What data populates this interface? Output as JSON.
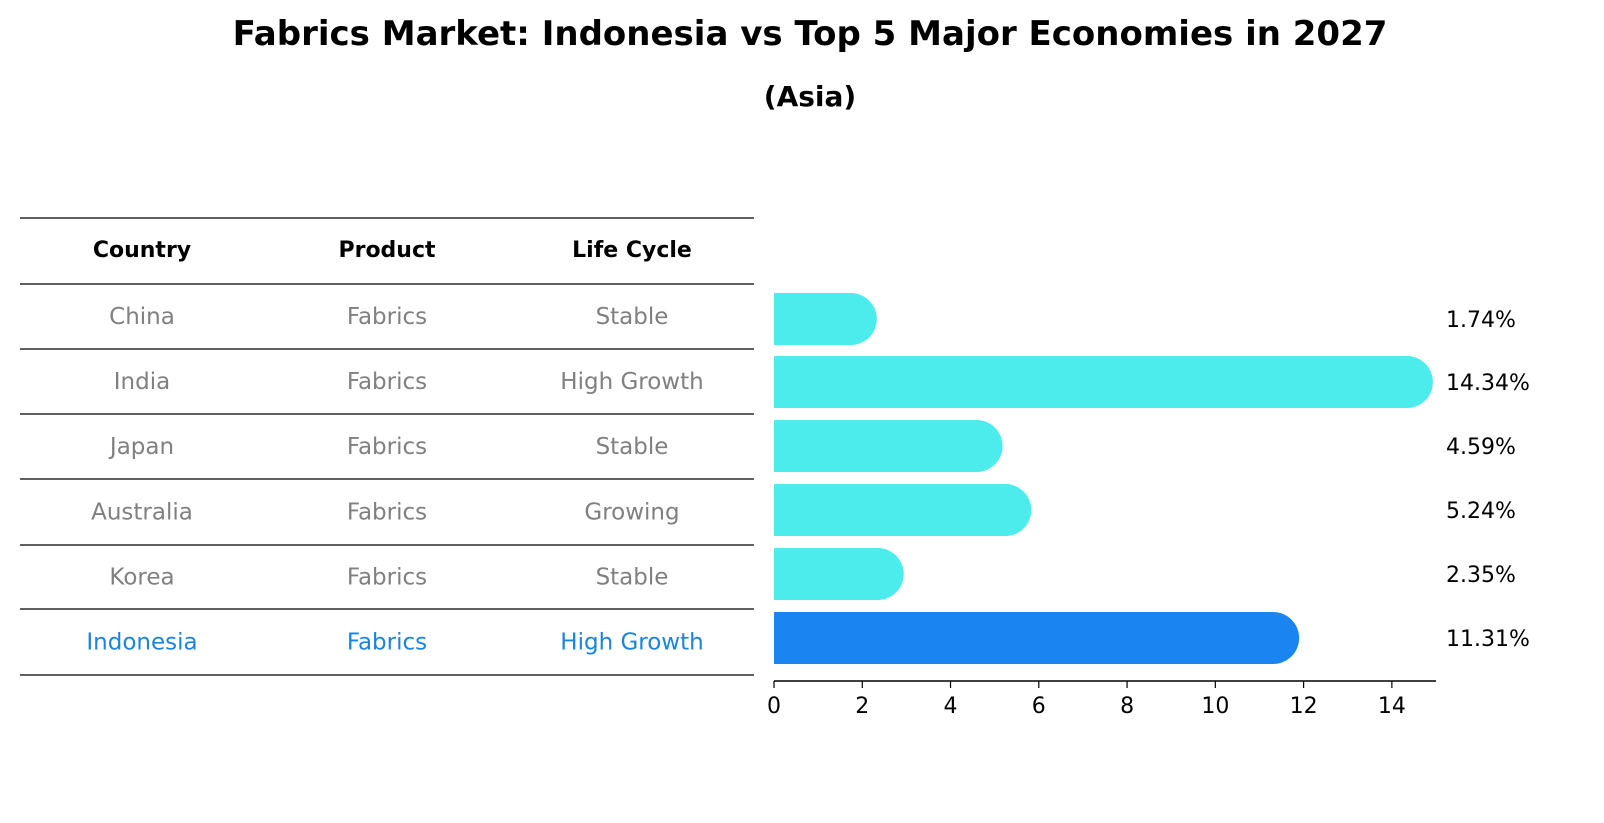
{
  "title": "Fabrics Market: Indonesia vs Top 5 Major Economies in 2027",
  "subtitle": "(Asia)",
  "table": {
    "headers": [
      "Country",
      "Product",
      "Life Cycle"
    ],
    "rows": [
      {
        "country": "China",
        "product": "Fabrics",
        "life_cycle": "Stable",
        "highlight": false
      },
      {
        "country": "India",
        "product": "Fabrics",
        "life_cycle": "High Growth",
        "highlight": false
      },
      {
        "country": "Japan",
        "product": "Fabrics",
        "life_cycle": "Stable",
        "highlight": false
      },
      {
        "country": "Australia",
        "product": "Fabrics",
        "life_cycle": "Growing",
        "highlight": false
      },
      {
        "country": "Korea",
        "product": "Fabrics",
        "life_cycle": "Stable",
        "highlight": false
      },
      {
        "country": "Indonesia",
        "product": "Fabrics",
        "life_cycle": "High Growth",
        "highlight": true
      }
    ]
  },
  "chart_data": {
    "type": "bar",
    "orientation": "horizontal",
    "categories": [
      "China",
      "India",
      "Japan",
      "Australia",
      "Korea",
      "Indonesia"
    ],
    "values": [
      1.74,
      14.34,
      4.59,
      5.24,
      2.35,
      11.31
    ],
    "labels": [
      "1.74%",
      "14.34%",
      "4.59%",
      "5.24%",
      "2.35%",
      "11.31%"
    ],
    "xlim": [
      0,
      15
    ],
    "xticks": [
      0,
      2,
      4,
      6,
      8,
      10,
      12,
      14
    ],
    "title": "Fabrics Market: Indonesia vs Top 5 Major Economies in 2027",
    "subtitle": "(Asia)",
    "xlabel": "",
    "ylabel": "",
    "grid": false,
    "colors": {
      "default": "#4beceb",
      "highlight": "#1a84f0"
    }
  },
  "colors": {
    "cell_text": "#808080",
    "highlight_text": "#1a84e0"
  }
}
